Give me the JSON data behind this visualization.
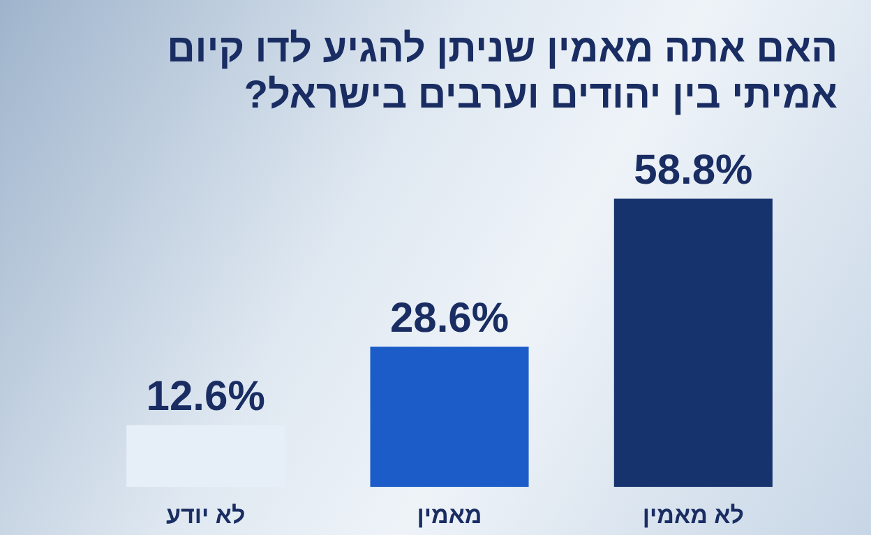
{
  "chart_data": {
    "type": "bar",
    "title": "האם אתה מאמין שניתן להגיע לדו קיום אמיתי בין יהודים וערבים בישראל?",
    "categories": [
      "לא יודע",
      "מאמין",
      "לא מאמין"
    ],
    "values": [
      12.6,
      28.6,
      58.8
    ],
    "colors": [
      "#e6eef8",
      "#1c5cc8",
      "#17336e"
    ],
    "value_labels": [
      "12.6%",
      "28.6%",
      "58.8%"
    ],
    "grid": false,
    "legend": false
  }
}
